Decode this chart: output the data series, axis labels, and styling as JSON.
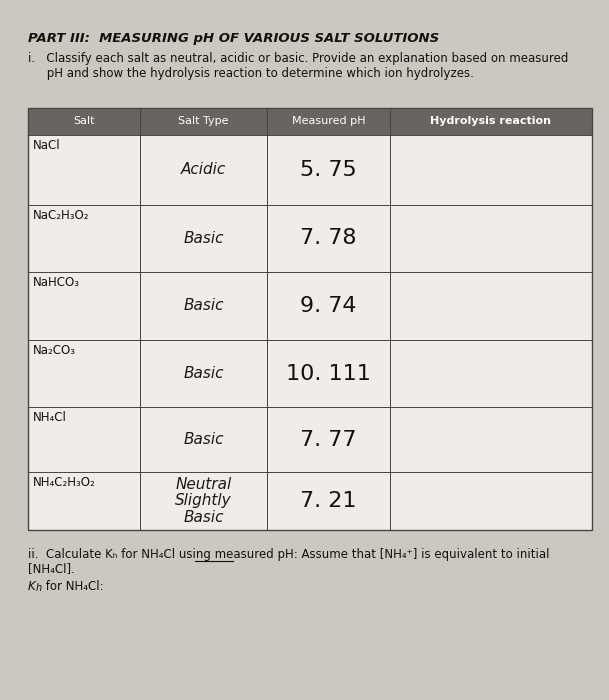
{
  "title": "PART III:  MEASURING pH OF VARIOUS SALT SOLUTIONS",
  "instruction_i_line1": "i.   Classify each salt as neutral, acidic or basic. Provide an explanation based on measured",
  "instruction_i_line2": "     pH and show the hydrolysis reaction to determine which ion hydrolyzes.",
  "table_headers": [
    "Salt",
    "Salt Type",
    "Measured pH",
    "Hydrolysis reaction"
  ],
  "rows": [
    {
      "salt": "NaCl",
      "salt_type_handwritten": "Acidic",
      "measured_ph_handwritten": "5. 75"
    },
    {
      "salt": "NaC₂H₃O₂",
      "salt_type_handwritten": "Basic",
      "measured_ph_handwritten": "7. 78"
    },
    {
      "salt": "NaHCO₃",
      "salt_type_handwritten": "Basic",
      "measured_ph_handwritten": "9. 74"
    },
    {
      "salt": "Na₂CO₃",
      "salt_type_handwritten": "Basic",
      "measured_ph_handwritten": "10. 111"
    },
    {
      "salt": "NH₄Cl",
      "salt_type_handwritten": "Basic",
      "measured_ph_handwritten": "7. 77"
    },
    {
      "salt": "NH₄C₂H₃O₂",
      "salt_type_handwritten": "Neutral\nSlightly\nBasic",
      "measured_ph_handwritten": "7. 21"
    }
  ],
  "instruction_ii": "ii.  Calculate Kₕ for NH₄Cl using measured pH: Assume that [NH₄⁺] is equivalent to initial",
  "instruction_ii_line2": "[NH₄Cl].",
  "kb_label_part1": "K",
  "kb_label_sub": "h",
  "kb_label_part2": " for NH₄Cl:",
  "header_bg": "#686460",
  "page_bg": "#ccc8c0",
  "table_bg": "#e8e4de",
  "table_line_color": "#444444",
  "text_color": "#111111",
  "white_cell_bg": "#f0ede8"
}
